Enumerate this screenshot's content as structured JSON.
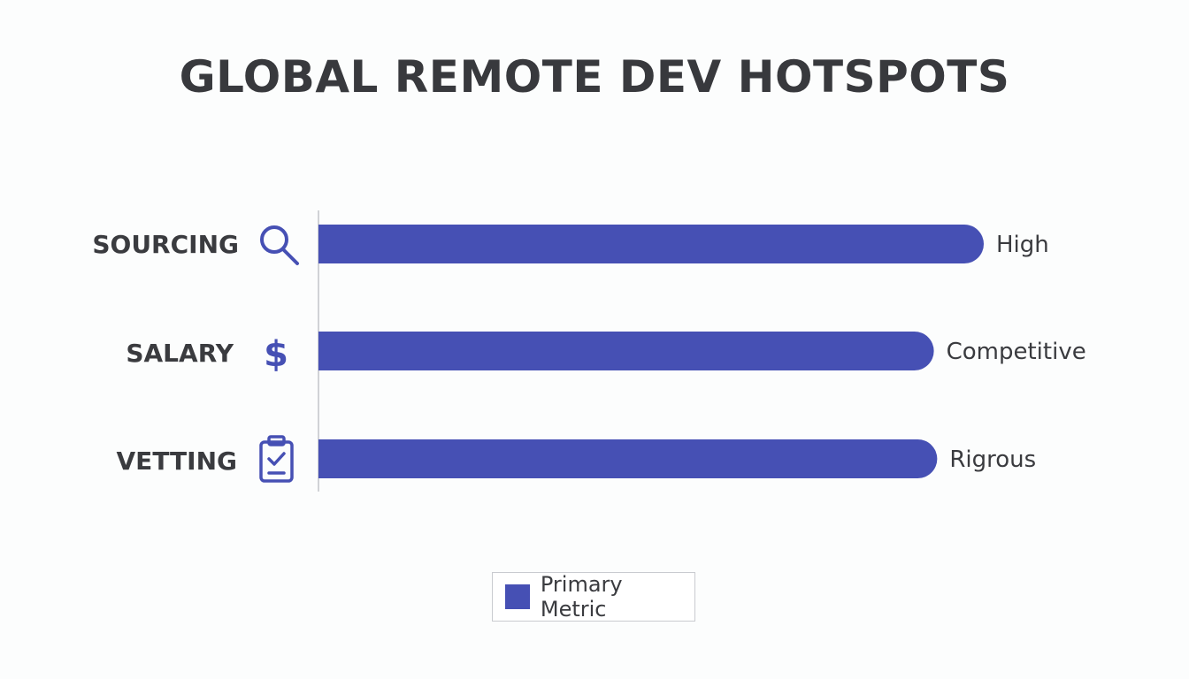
{
  "chart_data": {
    "type": "bar",
    "orientation": "horizontal",
    "title": "GLOBAL REMOTE DEV HOTSPOTS",
    "categories": [
      "SOURCING",
      "SALARY",
      "VETTING"
    ],
    "category_icons": [
      "search-icon",
      "dollar-icon",
      "clipboard-check-icon"
    ],
    "series": [
      {
        "name": "Primary Metric",
        "values": [
          100,
          92.5,
          93
        ],
        "value_labels": [
          "High",
          "Competitive",
          "Rigrous"
        ]
      }
    ],
    "xlim": [
      0,
      100
    ],
    "grid": false,
    "legend_position": "bottom-center",
    "colors": {
      "bar": "#4650b4",
      "text": "#3a3b3f",
      "axis": "#d0d2d6"
    }
  }
}
